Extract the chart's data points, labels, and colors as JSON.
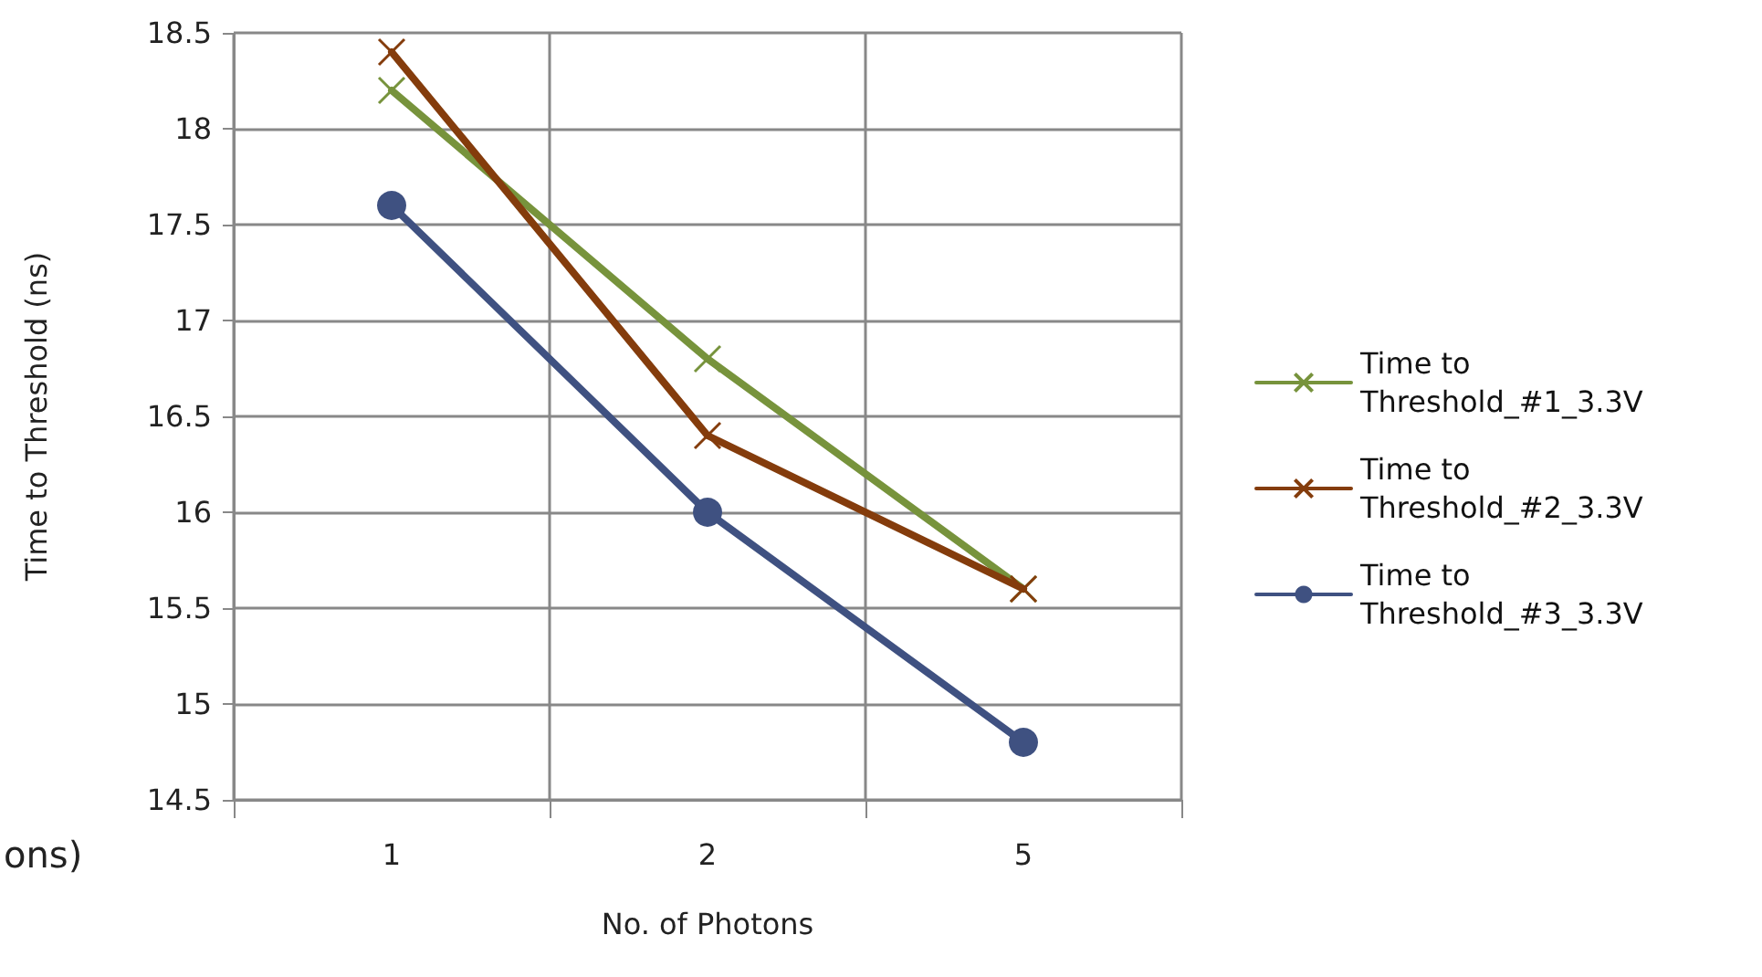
{
  "chart_data": {
    "type": "line",
    "xlabel": "No. of Photons",
    "ylabel": "Time to Threshold (ns)",
    "annotations": [
      "ons)"
    ],
    "categories": [
      "1",
      "2",
      "5"
    ],
    "series": [
      {
        "name": "Time to Threshold_#1_3.3V",
        "color": "#77933c",
        "marker": "cross",
        "values": [
          18.2,
          16.8,
          15.6
        ]
      },
      {
        "name": "Time to Threshold_#2_3.3V",
        "color": "#843c0c",
        "marker": "cross",
        "values": [
          18.4,
          16.4,
          15.6
        ]
      },
      {
        "name": "Time to Threshold_#3_3.3V",
        "color": "#3f5181",
        "marker": "circle",
        "values": [
          17.6,
          16.0,
          14.8
        ]
      }
    ],
    "ylim": [
      14.5,
      18.5
    ],
    "yticks": [
      14.5,
      15,
      15.5,
      16,
      16.5,
      17,
      17.5,
      18,
      18.5
    ],
    "grid": true,
    "legend": "right",
    "line_style": "solid"
  }
}
